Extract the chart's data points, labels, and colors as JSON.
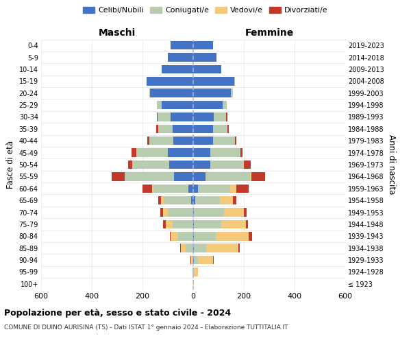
{
  "age_groups": [
    "100+",
    "95-99",
    "90-94",
    "85-89",
    "80-84",
    "75-79",
    "70-74",
    "65-69",
    "60-64",
    "55-59",
    "50-54",
    "45-49",
    "40-44",
    "35-39",
    "30-34",
    "25-29",
    "20-24",
    "15-19",
    "10-14",
    "5-9",
    "0-4"
  ],
  "birth_years": [
    "≤ 1923",
    "1924-1928",
    "1929-1933",
    "1934-1938",
    "1939-1943",
    "1944-1948",
    "1949-1953",
    "1954-1958",
    "1959-1963",
    "1964-1968",
    "1969-1973",
    "1974-1978",
    "1979-1983",
    "1984-1988",
    "1989-1993",
    "1994-1998",
    "1999-2003",
    "2004-2008",
    "2009-2013",
    "2014-2018",
    "2019-2023"
  ],
  "males": {
    "celibe": [
      0,
      0,
      0,
      0,
      0,
      0,
      0,
      8,
      18,
      75,
      95,
      100,
      78,
      80,
      88,
      125,
      170,
      185,
      125,
      100,
      90
    ],
    "coniugato": [
      0,
      2,
      4,
      30,
      60,
      80,
      100,
      108,
      138,
      195,
      145,
      125,
      95,
      58,
      52,
      18,
      4,
      0,
      0,
      0,
      0
    ],
    "vedovo": [
      0,
      2,
      5,
      20,
      28,
      28,
      18,
      10,
      5,
      0,
      0,
      0,
      0,
      0,
      0,
      0,
      0,
      0,
      0,
      0,
      0
    ],
    "divorziato": [
      0,
      0,
      2,
      2,
      5,
      10,
      12,
      12,
      38,
      52,
      18,
      18,
      8,
      7,
      4,
      0,
      0,
      0,
      0,
      0,
      0
    ]
  },
  "females": {
    "nubile": [
      0,
      0,
      2,
      2,
      2,
      2,
      4,
      8,
      18,
      48,
      68,
      68,
      78,
      78,
      82,
      115,
      148,
      162,
      112,
      92,
      78
    ],
    "coniugata": [
      1,
      4,
      18,
      48,
      88,
      108,
      118,
      98,
      128,
      175,
      128,
      118,
      88,
      58,
      48,
      18,
      8,
      2,
      0,
      0,
      0
    ],
    "vedova": [
      2,
      14,
      58,
      128,
      128,
      98,
      78,
      52,
      24,
      8,
      4,
      0,
      0,
      0,
      0,
      0,
      0,
      0,
      0,
      0,
      0
    ],
    "divorziata": [
      0,
      0,
      2,
      5,
      14,
      8,
      12,
      12,
      48,
      52,
      28,
      8,
      4,
      4,
      4,
      0,
      0,
      0,
      0,
      0,
      0
    ]
  },
  "colors": {
    "celibe": "#4472C4",
    "coniugato": "#B8CCB0",
    "vedovo": "#F5C97A",
    "divorziato": "#C0392B"
  },
  "title": "Popolazione per età, sesso e stato civile - 2024",
  "subtitle": "COMUNE DI DUINO AURISINA (TS) - Dati ISTAT 1° gennaio 2024 - Elaborazione TUTTITALIA.IT",
  "xlabel_left": "Maschi",
  "xlabel_right": "Femmine",
  "ylabel_left": "Fasce di età",
  "ylabel_right": "Anni di nascita",
  "legend_labels": [
    "Celibi/Nubili",
    "Coniugati/e",
    "Vedovi/e",
    "Divorziati/e"
  ],
  "xlim": 600,
  "bg_color": "#FFFFFF",
  "grid_color": "#CCCCCC"
}
